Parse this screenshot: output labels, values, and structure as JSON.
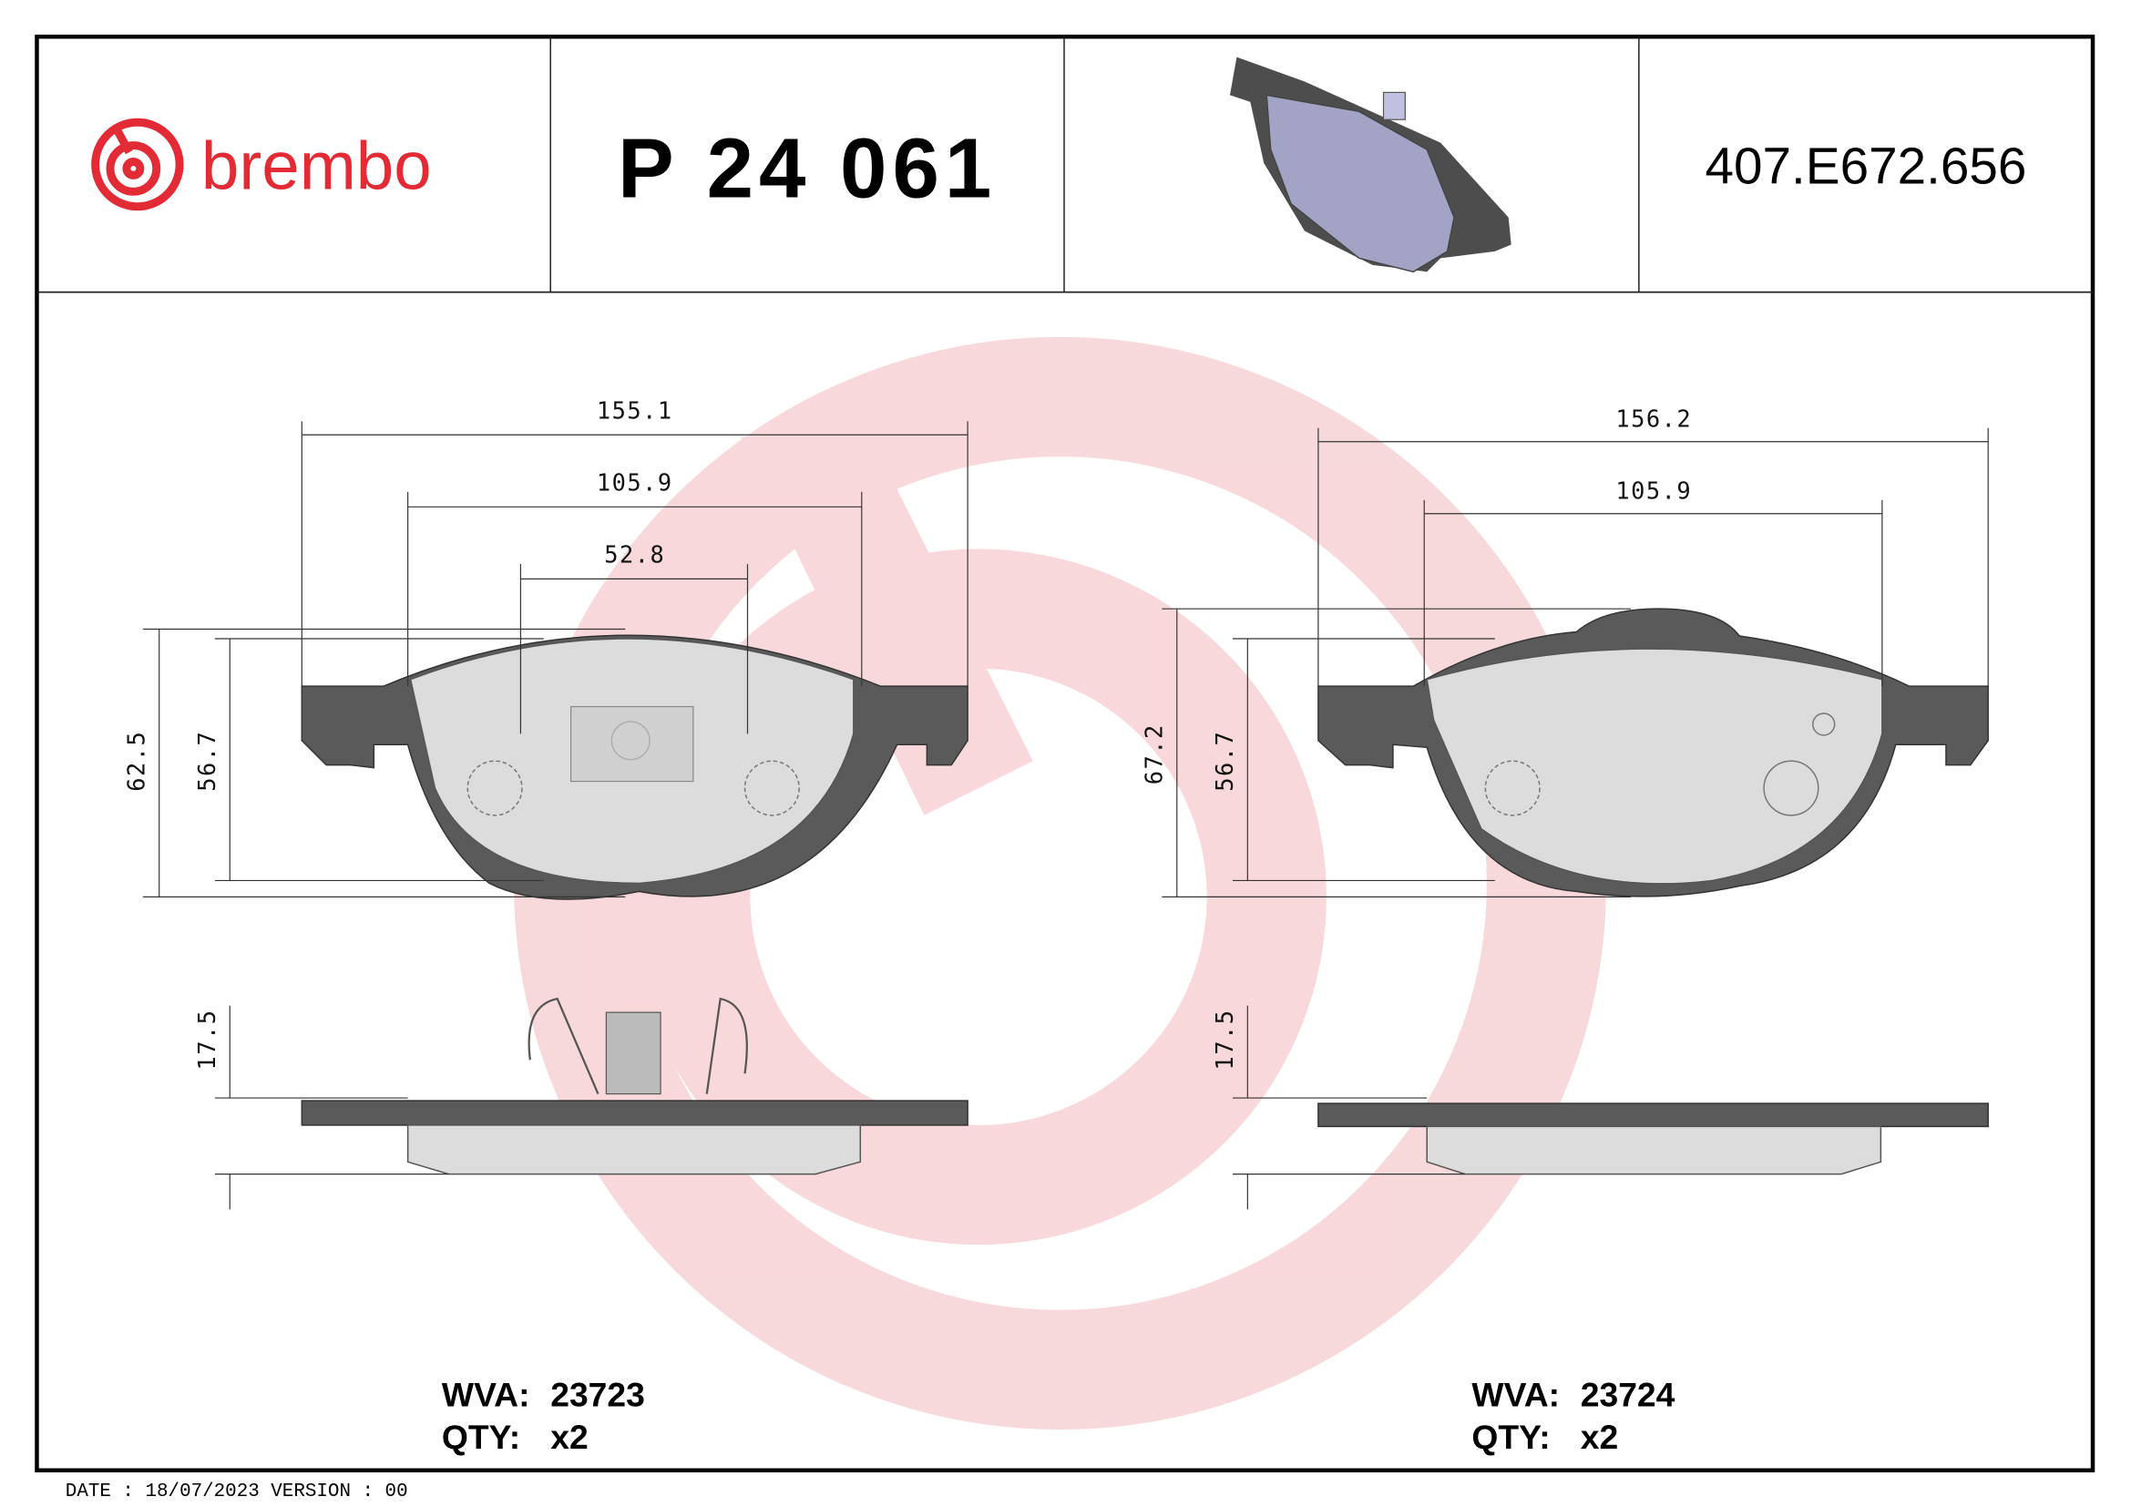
{
  "header": {
    "brand": "brembo",
    "part_number": "P 24 061",
    "reference_code": "407.E672.656",
    "brand_color": "#e32b35"
  },
  "pads": [
    {
      "dimensions": {
        "overall_width": "155.1",
        "inner_width": "105.9",
        "center_width": "52.8",
        "overall_height": "62.5",
        "pad_height": "56.7",
        "thickness": "17.5"
      },
      "wva_label": "WVA:",
      "wva": "23723",
      "qty_label": "QTY:",
      "qty": "x2"
    },
    {
      "dimensions": {
        "overall_width": "156.2",
        "inner_width": "105.9",
        "overall_height": "67.2",
        "pad_height": "56.7",
        "thickness": "17.5"
      },
      "wva_label": "WVA:",
      "wva": "23724",
      "qty_label": "QTY:",
      "qty": "x2"
    }
  ],
  "footer": {
    "text": "DATE : 18/07/2023 VERSION : 00"
  }
}
